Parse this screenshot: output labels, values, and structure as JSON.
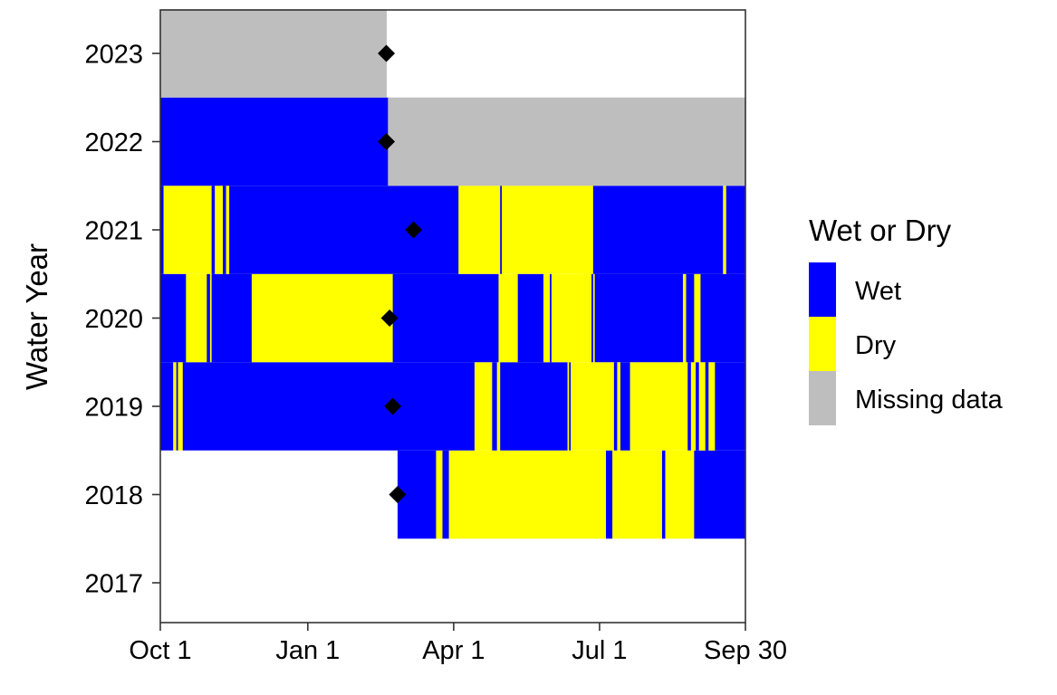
{
  "chart_data": {
    "type": "heatmap",
    "title": "",
    "xlabel": "",
    "ylabel": "Water Year",
    "x_unit": "day of water year",
    "xlim": [
      1,
      366
    ],
    "x_ticks": [
      {
        "label": "Oct 1",
        "day": 1
      },
      {
        "label": "Jan 1",
        "day": 93
      },
      {
        "label": "Apr 1",
        "day": 184
      },
      {
        "label": "Jul 1",
        "day": 275
      },
      {
        "label": "Sep 30",
        "day": 366
      }
    ],
    "years": [
      "2017",
      "2018",
      "2019",
      "2020",
      "2021",
      "2022",
      "2023"
    ],
    "status_colors": {
      "Wet": "#0000ff",
      "Dry": "#ffff00",
      "Missing": "#bebebe"
    },
    "legend": {
      "title": "Wet or Dry",
      "position": "right",
      "entries": [
        {
          "key": "Wet",
          "label": "Wet"
        },
        {
          "key": "Dry",
          "label": "Dry"
        },
        {
          "key": "Missing",
          "label": "Missing data"
        }
      ]
    },
    "segments": {
      "2017": [],
      "2018": [
        [
          "Wet",
          149,
          173
        ],
        [
          "Dry",
          173,
          177
        ],
        [
          "Wet",
          177,
          181
        ],
        [
          "Dry",
          181,
          279
        ],
        [
          "Wet",
          279,
          283
        ],
        [
          "Dry",
          283,
          314
        ],
        [
          "Wet",
          314,
          316
        ],
        [
          "Dry",
          316,
          334
        ],
        [
          "Wet",
          334,
          366
        ]
      ],
      "2019": [
        [
          "Wet",
          1,
          9
        ],
        [
          "Dry",
          9,
          11
        ],
        [
          "Wet",
          11,
          12
        ],
        [
          "Dry",
          12,
          15
        ],
        [
          "Wet",
          15,
          197
        ],
        [
          "Dry",
          197,
          208
        ],
        [
          "Wet",
          208,
          211
        ],
        [
          "Dry",
          211,
          213
        ],
        [
          "Wet",
          213,
          255
        ],
        [
          "Dry",
          255,
          256
        ],
        [
          "Wet",
          256,
          257
        ],
        [
          "Dry",
          257,
          284
        ],
        [
          "Wet",
          284,
          286
        ],
        [
          "Dry",
          286,
          288
        ],
        [
          "Wet",
          288,
          294
        ],
        [
          "Dry",
          294,
          330
        ],
        [
          "Wet",
          330,
          332
        ],
        [
          "Dry",
          332,
          335
        ],
        [
          "Wet",
          335,
          337
        ],
        [
          "Dry",
          337,
          341
        ],
        [
          "Wet",
          341,
          343
        ],
        [
          "Dry",
          343,
          347
        ],
        [
          "Wet",
          347,
          366
        ]
      ],
      "2020": [
        [
          "Wet",
          1,
          17
        ],
        [
          "Dry",
          17,
          30
        ],
        [
          "Wet",
          30,
          32
        ],
        [
          "Dry",
          32,
          33
        ],
        [
          "Wet",
          33,
          58
        ],
        [
          "Dry",
          58,
          146
        ],
        [
          "Wet",
          146,
          212
        ],
        [
          "Dry",
          212,
          224
        ],
        [
          "Wet",
          224,
          240
        ],
        [
          "Dry",
          240,
          244
        ],
        [
          "Wet",
          244,
          245
        ],
        [
          "Dry",
          245,
          270
        ],
        [
          "Wet",
          270,
          271
        ],
        [
          "Dry",
          271,
          272
        ],
        [
          "Wet",
          272,
          327
        ],
        [
          "Dry",
          327,
          329
        ],
        [
          "Wet",
          329,
          334
        ],
        [
          "Dry",
          334,
          338
        ],
        [
          "Wet",
          338,
          366
        ]
      ],
      "2021": [
        [
          "Wet",
          1,
          3
        ],
        [
          "Dry",
          3,
          33
        ],
        [
          "Wet",
          33,
          35
        ],
        [
          "Dry",
          35,
          40
        ],
        [
          "Wet",
          40,
          42
        ],
        [
          "Dry",
          42,
          44
        ],
        [
          "Wet",
          44,
          187
        ],
        [
          "Dry",
          187,
          213
        ],
        [
          "Wet",
          213,
          214
        ],
        [
          "Dry",
          214,
          271
        ],
        [
          "Wet",
          271,
          352
        ],
        [
          "Dry",
          352,
          354
        ],
        [
          "Wet",
          354,
          366
        ]
      ],
      "2022": [
        [
          "Wet",
          1,
          143
        ],
        [
          "Missing",
          143,
          366
        ]
      ],
      "2023": [
        [
          "Missing",
          1,
          142
        ]
      ]
    },
    "markers": {
      "shape": "diamond",
      "color": "#000000",
      "points": [
        {
          "year": "2018",
          "day": 149
        },
        {
          "year": "2019",
          "day": 146
        },
        {
          "year": "2020",
          "day": 144
        },
        {
          "year": "2021",
          "day": 159
        },
        {
          "year": "2022",
          "day": 142
        },
        {
          "year": "2023",
          "day": 142
        }
      ]
    }
  }
}
